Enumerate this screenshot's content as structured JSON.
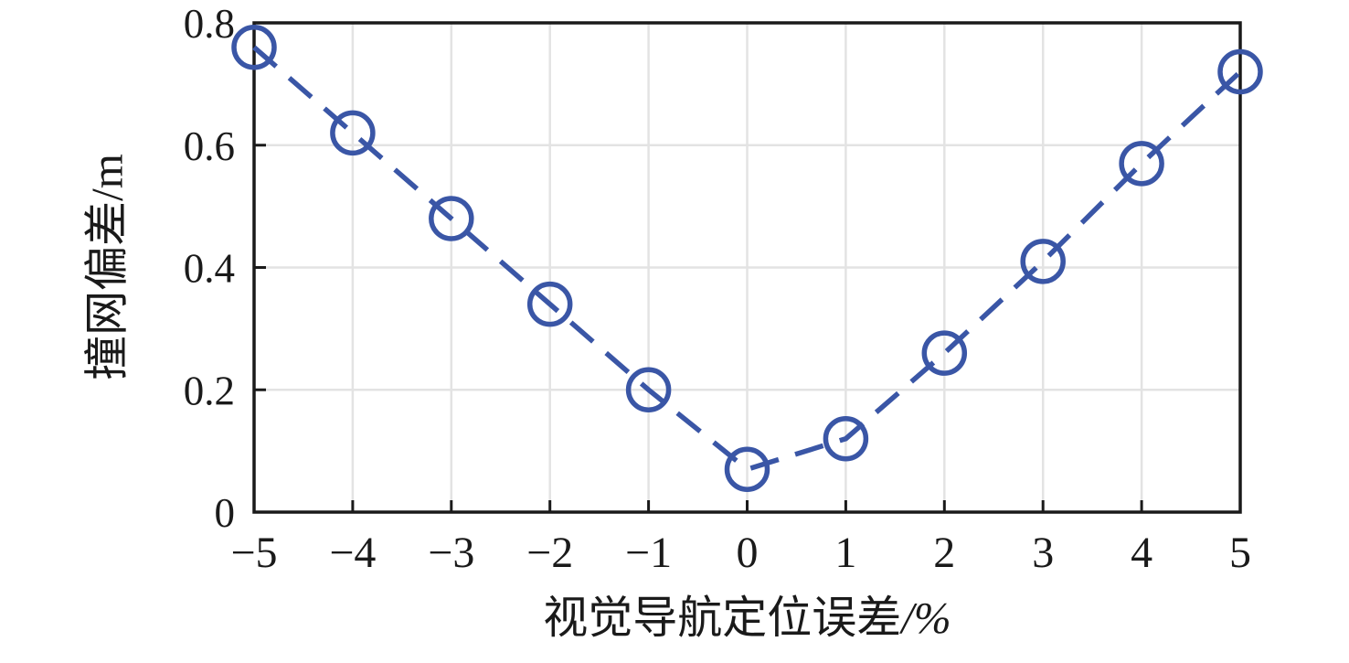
{
  "chart_data": {
    "type": "line",
    "title": "",
    "xlabel": "视觉导航定位误差/%",
    "xlabel_text": "视觉导航定位误差",
    "xlabel_unit": "/%",
    "ylabel": "撞网偏差/m",
    "ylabel_text": "撞网偏差",
    "ylabel_unit": "/m",
    "x": [
      -5,
      -4,
      -3,
      -2,
      -1,
      0,
      1,
      2,
      3,
      4,
      5
    ],
    "y": [
      0.76,
      0.62,
      0.48,
      0.34,
      0.2,
      0.07,
      0.12,
      0.26,
      0.41,
      0.57,
      0.72
    ],
    "xlim": [
      -5,
      5
    ],
    "ylim": [
      0,
      0.8
    ],
    "x_ticks": [
      -5,
      -4,
      -3,
      -2,
      -1,
      0,
      1,
      2,
      3,
      4,
      5
    ],
    "x_tick_labels": [
      "−5",
      "−4",
      "−3",
      "−2",
      "−1",
      "0",
      "1",
      "2",
      "3",
      "4",
      "5"
    ],
    "y_ticks": [
      0,
      0.2,
      0.4,
      0.6,
      0.8
    ],
    "y_tick_labels": [
      "0",
      "0.2",
      "0.4",
      "0.6",
      "0.8"
    ],
    "grid": true,
    "legend_position": "none",
    "line_style": "dashed",
    "marker": "circle",
    "colors": {
      "line": "#3A56A6",
      "grid": "#E3E3E3",
      "axis": "#1A1A1A",
      "text": "#1A1A1A",
      "background": "#FFFFFF"
    }
  }
}
